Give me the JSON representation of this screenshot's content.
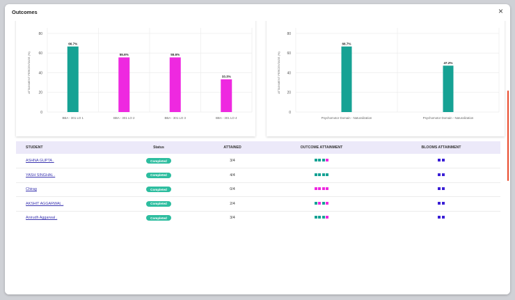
{
  "modal": {
    "title": "Outcomes",
    "close_label": "×"
  },
  "colors": {
    "teal": "#16a294",
    "magenta": "#ee29e0",
    "blue": "#3a1fd6",
    "badge": "#2dbd9f",
    "accent_bar": "#e94a2b"
  },
  "chart_data": [
    {
      "type": "bar",
      "ylabel": "ATTAINMENT PERCENTAGE (%)",
      "ylim": [
        0,
        80
      ],
      "yticks": [
        0,
        20,
        40,
        60,
        80
      ],
      "categories": [
        "BBA - 301 LO 1",
        "BBA - 301 LO 2",
        "BBA - 301 LO 3",
        "BBA - 301 LO 4"
      ],
      "values": [
        66.7,
        55.6,
        55.6,
        33.3
      ],
      "value_labels": [
        "66.7%",
        "55.6%",
        "55.6%",
        "33.3%"
      ],
      "bar_colors": [
        "#16a294",
        "#ee29e0",
        "#ee29e0",
        "#ee29e0"
      ],
      "grid": true
    },
    {
      "type": "bar",
      "ylabel": "ATTAINMENT PERCENTAGE (%)",
      "ylim": [
        0,
        80
      ],
      "yticks": [
        0,
        20,
        40,
        60,
        80
      ],
      "categories": [
        "Psychomotor Domain - Naturalization",
        "Psychomotor Domain - Naturalization"
      ],
      "values": [
        66.7,
        47.2
      ],
      "value_labels": [
        "66.7%",
        "47.2%"
      ],
      "bar_colors": [
        "#16a294",
        "#16a294"
      ],
      "grid": true
    }
  ],
  "table": {
    "headers": {
      "student": "STUDENT",
      "status": "Status",
      "attained": "ATTAINED",
      "outcome": "OUTCOME ATTAINMENT",
      "blooms": "BLOOMS ATTAINMENT"
    },
    "rows": [
      {
        "student": "ASHNA GUPTA .",
        "status": "Completed",
        "attained": "3/4",
        "outcome": [
          "teal",
          "teal",
          "teal",
          "magenta"
        ],
        "blooms": [
          "blue",
          "blue"
        ]
      },
      {
        "student": "YASH SINGHAL .",
        "status": "Completed",
        "attained": "4/4",
        "outcome": [
          "teal",
          "teal",
          "teal",
          "teal"
        ],
        "blooms": [
          "blue",
          "blue"
        ]
      },
      {
        "student": "Chirag",
        "status": "Completed",
        "attained": "0/4",
        "outcome": [
          "magenta",
          "magenta",
          "magenta",
          "magenta"
        ],
        "blooms": [
          "blue",
          "blue"
        ]
      },
      {
        "student": "AKSHIT AGGARWAL .",
        "status": "Completed",
        "attained": "2/4",
        "outcome": [
          "teal",
          "magenta",
          "teal",
          "magenta"
        ],
        "blooms": [
          "blue",
          "blue"
        ]
      },
      {
        "student": "Anirudh Aggarwal .",
        "status": "Completed",
        "attained": "3/4",
        "outcome": [
          "teal",
          "teal",
          "teal",
          "magenta"
        ],
        "blooms": [
          "blue",
          "blue"
        ]
      }
    ]
  }
}
